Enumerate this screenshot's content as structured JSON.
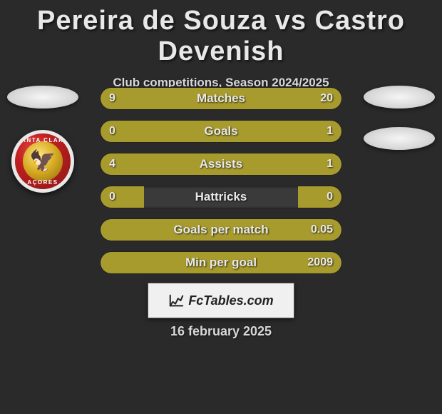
{
  "title": "Pereira de Souza vs Castro Devenish",
  "subtitle": "Club competitions, Season 2024/2025",
  "left_club": {
    "text_top": "SANTA CLARA",
    "text_bottom": "AÇORES",
    "eagle": "🦅"
  },
  "bars": [
    {
      "label": "Matches",
      "left": "9",
      "right": "20",
      "left_pct": 31,
      "right_pct": 69
    },
    {
      "label": "Goals",
      "left": "0",
      "right": "1",
      "left_pct": 18,
      "right_pct": 82
    },
    {
      "label": "Assists",
      "left": "4",
      "right": "1",
      "left_pct": 80,
      "right_pct": 20
    },
    {
      "label": "Hattricks",
      "left": "0",
      "right": "0",
      "left_pct": 18,
      "right_pct": 18
    },
    {
      "label": "Goals per match",
      "left": "",
      "right": "0.05",
      "left_pct": 18,
      "right_pct": 82
    },
    {
      "label": "Min per goal",
      "left": "",
      "right": "2009",
      "left_pct": 18,
      "right_pct": 82
    }
  ],
  "colors": {
    "bar_bg": "#3a3a3a",
    "fill": "#a89b2e",
    "page_bg": "#2a2a2a"
  },
  "footer": {
    "brand": "FcTables.com",
    "date": "16 february 2025"
  }
}
